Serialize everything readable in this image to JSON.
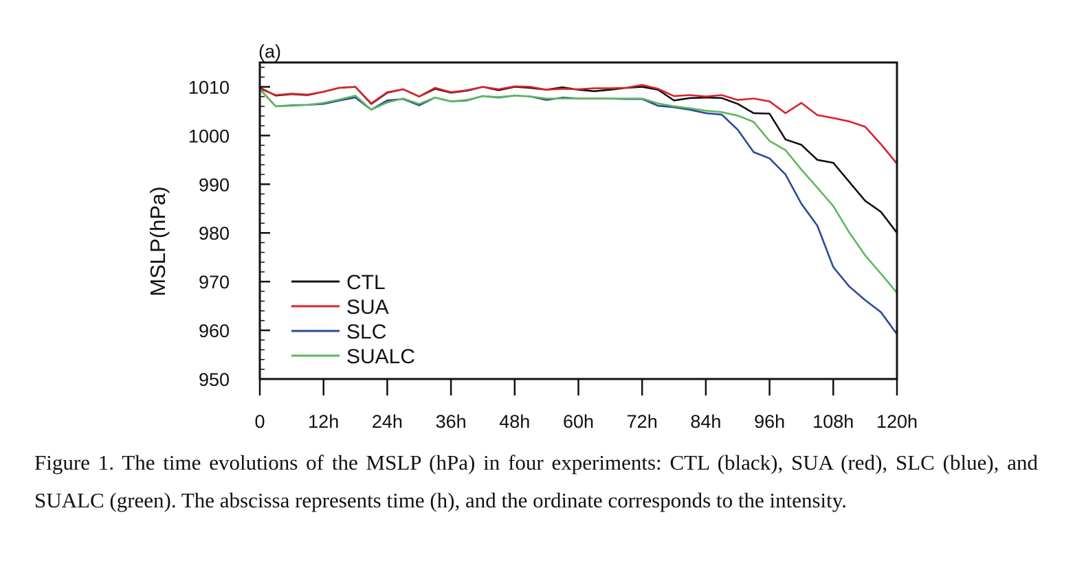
{
  "caption": "Figure 1. The time evolutions of the MSLP (hPa) in four experiments: CTL (black), SUA (red), SLC (blue), and SUALC (green). The abscissa represents time (h), and the ordinate corresponds to the intensity.",
  "chart_data": {
    "type": "line",
    "panel_label": "(a)",
    "ylabel": "MSLP(hPa)",
    "xlabel": "",
    "xlim": [
      0,
      120
    ],
    "ylim": [
      950,
      1015
    ],
    "xticks": [
      0,
      12,
      24,
      36,
      48,
      60,
      72,
      84,
      96,
      108,
      120
    ],
    "xtick_labels": [
      "0",
      "12h",
      "24h",
      "36h",
      "48h",
      "60h",
      "72h",
      "84h",
      "96h",
      "108h",
      "120h"
    ],
    "yticks": [
      950,
      960,
      970,
      980,
      990,
      1000,
      1010
    ],
    "ytick_labels": [
      "950",
      "960",
      "970",
      "980",
      "990",
      "1000",
      "1010"
    ],
    "grid": false,
    "legend_position": "lower-left",
    "x": [
      0,
      3,
      6,
      9,
      12,
      15,
      18,
      21,
      24,
      27,
      30,
      33,
      36,
      39,
      42,
      45,
      48,
      51,
      54,
      57,
      60,
      63,
      66,
      69,
      72,
      75,
      78,
      81,
      84,
      87,
      90,
      93,
      96,
      99,
      102,
      105,
      108,
      111,
      114,
      117,
      120
    ],
    "series": [
      {
        "name": "CTL",
        "color": "#111111",
        "values": [
          1009.8,
          1008.2,
          1008.5,
          1008.3,
          1009.0,
          1009.8,
          1010.0,
          1006.5,
          1008.8,
          1009.5,
          1008.0,
          1009.6,
          1008.8,
          1009.2,
          1010.0,
          1009.3,
          1010.0,
          1009.8,
          1009.4,
          1009.9,
          1009.4,
          1009.1,
          1009.4,
          1009.8,
          1010.0,
          1009.4,
          1007.2,
          1007.7,
          1007.8,
          1007.7,
          1006.5,
          1004.6,
          1004.5,
          999.2,
          998.1,
          995.0,
          994.4,
          990.5,
          986.6,
          984.3,
          980.0
        ]
      },
      {
        "name": "SUA",
        "color": "#d8232a",
        "values": [
          1009.6,
          1008.3,
          1008.6,
          1008.4,
          1009.0,
          1009.8,
          1010.0,
          1006.6,
          1008.9,
          1009.5,
          1008.0,
          1009.8,
          1008.9,
          1009.3,
          1010.0,
          1009.5,
          1010.1,
          1010.0,
          1009.4,
          1009.6,
          1009.5,
          1009.7,
          1009.7,
          1009.8,
          1010.4,
          1009.6,
          1008.1,
          1008.3,
          1008.0,
          1008.3,
          1007.3,
          1007.6,
          1007.0,
          1004.6,
          1006.7,
          1004.2,
          1003.6,
          1002.9,
          1001.8,
          998.2,
          994.2
        ]
      },
      {
        "name": "SLC",
        "color": "#2d4a9a",
        "values": [
          1009.5,
          1006.0,
          1006.2,
          1006.3,
          1006.5,
          1007.2,
          1007.8,
          1005.3,
          1007.2,
          1007.5,
          1006.2,
          1007.8,
          1007.0,
          1007.2,
          1008.1,
          1007.8,
          1008.2,
          1008.0,
          1007.3,
          1007.8,
          1007.6,
          1007.6,
          1007.6,
          1007.5,
          1007.5,
          1006.1,
          1005.8,
          1005.3,
          1004.6,
          1004.3,
          1001.2,
          996.6,
          995.3,
          992.0,
          986.0,
          981.5,
          973.0,
          969.0,
          966.2,
          963.7,
          959.2
        ]
      },
      {
        "name": "SUALC",
        "color": "#5cb85c",
        "values": [
          1009.5,
          1006.0,
          1006.1,
          1006.3,
          1006.7,
          1007.4,
          1008.2,
          1005.3,
          1006.8,
          1007.6,
          1006.5,
          1007.8,
          1007.0,
          1007.3,
          1008.1,
          1007.9,
          1008.2,
          1008.0,
          1007.6,
          1007.6,
          1007.6,
          1007.6,
          1007.6,
          1007.6,
          1007.6,
          1006.6,
          1006.0,
          1005.6,
          1005.1,
          1004.8,
          1004.1,
          1002.8,
          998.9,
          997.0,
          993.0,
          989.3,
          985.5,
          980.1,
          975.4,
          971.6,
          967.7
        ]
      }
    ]
  }
}
